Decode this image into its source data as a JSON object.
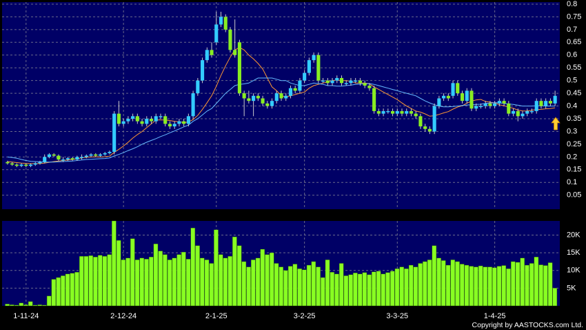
{
  "chart_data": {
    "type": "candlestick",
    "categories": [
      null,
      null,
      null,
      null,
      "1-11-24",
      null,
      null,
      null,
      null,
      null,
      null,
      null,
      null,
      null,
      null,
      null,
      null,
      null,
      null,
      null,
      null,
      null,
      null,
      null,
      null,
      "2-12-24",
      null,
      null,
      null,
      null,
      null,
      null,
      null,
      null,
      null,
      null,
      null,
      null,
      null,
      null,
      null,
      null,
      null,
      null,
      null,
      "2-1-25",
      null,
      null,
      null,
      null,
      null,
      null,
      null,
      null,
      null,
      null,
      null,
      null,
      null,
      null,
      null,
      null,
      null,
      null,
      "3-2-25",
      null,
      null,
      null,
      null,
      null,
      null,
      null,
      null,
      null,
      null,
      null,
      null,
      null,
      null,
      null,
      null,
      null,
      null,
      null,
      "3-3-25",
      null,
      null,
      null,
      null,
      null,
      null,
      null,
      null,
      null,
      null,
      null,
      null,
      null,
      null,
      null,
      null,
      null,
      null,
      null,
      null,
      "1-4-25",
      null,
      null,
      null,
      null,
      null,
      null,
      null,
      null,
      null,
      null,
      null,
      null,
      null
    ],
    "open": [
      0.18,
      0.175,
      0.17,
      0.165,
      0.17,
      0.165,
      0.17,
      0.175,
      0.18,
      0.2,
      0.21,
      0.205,
      0.19,
      0.19,
      0.195,
      0.19,
      0.2,
      0.2,
      0.205,
      0.21,
      0.205,
      0.21,
      0.215,
      0.22,
      0.37,
      0.33,
      0.34,
      0.35,
      0.36,
      0.34,
      0.33,
      0.35,
      0.34,
      0.36,
      0.36,
      0.33,
      0.32,
      0.33,
      0.34,
      0.33,
      0.36,
      0.45,
      0.5,
      0.58,
      0.62,
      0.65,
      0.72,
      0.75,
      0.7,
      0.62,
      0.65,
      0.45,
      0.43,
      0.42,
      0.44,
      0.43,
      0.41,
      0.4,
      0.42,
      0.45,
      0.43,
      0.44,
      0.47,
      0.46,
      0.5,
      0.53,
      0.58,
      0.6,
      0.5,
      0.5,
      0.49,
      0.5,
      0.51,
      0.49,
      0.49,
      0.5,
      0.5,
      0.49,
      0.48,
      0.47,
      0.38,
      0.37,
      0.38,
      0.38,
      0.37,
      0.38,
      0.37,
      0.38,
      0.37,
      0.36,
      0.32,
      0.31,
      0.3,
      0.4,
      0.43,
      0.44,
      0.44,
      0.49,
      0.45,
      0.42,
      0.46,
      0.39,
      0.4,
      0.4,
      0.41,
      0.4,
      0.41,
      0.42,
      0.41,
      0.37,
      0.38,
      0.36,
      0.37,
      0.38,
      0.38,
      0.42,
      0.4,
      0.42,
      0.41
    ],
    "high": [
      0.185,
      0.18,
      0.175,
      0.175,
      0.175,
      0.175,
      0.18,
      0.185,
      0.21,
      0.215,
      0.215,
      0.21,
      0.2,
      0.2,
      0.2,
      0.205,
      0.21,
      0.21,
      0.215,
      0.215,
      0.215,
      0.22,
      0.225,
      0.38,
      0.42,
      0.35,
      0.36,
      0.37,
      0.37,
      0.35,
      0.36,
      0.36,
      0.37,
      0.37,
      0.37,
      0.34,
      0.34,
      0.35,
      0.35,
      0.37,
      0.46,
      0.51,
      0.59,
      0.63,
      0.65,
      0.77,
      0.77,
      0.76,
      0.71,
      0.74,
      0.66,
      0.46,
      0.46,
      0.45,
      0.45,
      0.44,
      0.42,
      0.43,
      0.46,
      0.46,
      0.45,
      0.48,
      0.48,
      0.51,
      0.54,
      0.59,
      0.61,
      0.61,
      0.51,
      0.51,
      0.51,
      0.52,
      0.52,
      0.5,
      0.51,
      0.51,
      0.51,
      0.5,
      0.49,
      0.48,
      0.39,
      0.39,
      0.39,
      0.39,
      0.39,
      0.39,
      0.39,
      0.39,
      0.38,
      0.37,
      0.33,
      0.32,
      0.41,
      0.44,
      0.45,
      0.45,
      0.5,
      0.5,
      0.46,
      0.47,
      0.47,
      0.41,
      0.41,
      0.42,
      0.42,
      0.42,
      0.43,
      0.43,
      0.42,
      0.39,
      0.39,
      0.38,
      0.39,
      0.39,
      0.43,
      0.43,
      0.43,
      0.43,
      0.46
    ],
    "low": [
      0.17,
      0.165,
      0.16,
      0.16,
      0.16,
      0.16,
      0.165,
      0.17,
      0.175,
      0.195,
      0.2,
      0.185,
      0.18,
      0.185,
      0.185,
      0.185,
      0.19,
      0.195,
      0.2,
      0.2,
      0.2,
      0.205,
      0.21,
      0.21,
      0.32,
      0.32,
      0.33,
      0.34,
      0.33,
      0.32,
      0.32,
      0.33,
      0.33,
      0.35,
      0.32,
      0.31,
      0.31,
      0.32,
      0.32,
      0.32,
      0.35,
      0.44,
      0.49,
      0.57,
      0.59,
      0.64,
      0.71,
      0.69,
      0.61,
      0.59,
      0.44,
      0.36,
      0.41,
      0.36,
      0.42,
      0.4,
      0.39,
      0.39,
      0.41,
      0.42,
      0.42,
      0.43,
      0.45,
      0.45,
      0.49,
      0.52,
      0.57,
      0.49,
      0.49,
      0.48,
      0.48,
      0.49,
      0.48,
      0.48,
      0.48,
      0.49,
      0.48,
      0.47,
      0.46,
      0.37,
      0.36,
      0.36,
      0.37,
      0.36,
      0.36,
      0.36,
      0.36,
      0.36,
      0.35,
      0.31,
      0.3,
      0.29,
      0.29,
      0.39,
      0.42,
      0.42,
      0.43,
      0.44,
      0.41,
      0.41,
      0.38,
      0.38,
      0.39,
      0.39,
      0.39,
      0.39,
      0.4,
      0.4,
      0.36,
      0.36,
      0.34,
      0.35,
      0.36,
      0.37,
      0.37,
      0.39,
      0.39,
      0.4,
      0.4
    ],
    "close": [
      0.175,
      0.17,
      0.165,
      0.17,
      0.165,
      0.17,
      0.175,
      0.18,
      0.2,
      0.21,
      0.205,
      0.19,
      0.19,
      0.195,
      0.19,
      0.2,
      0.2,
      0.205,
      0.21,
      0.205,
      0.21,
      0.215,
      0.22,
      0.37,
      0.33,
      0.34,
      0.35,
      0.36,
      0.34,
      0.33,
      0.35,
      0.34,
      0.36,
      0.36,
      0.33,
      0.32,
      0.33,
      0.34,
      0.33,
      0.36,
      0.45,
      0.5,
      0.58,
      0.62,
      0.6,
      0.72,
      0.75,
      0.7,
      0.62,
      0.6,
      0.45,
      0.43,
      0.42,
      0.44,
      0.43,
      0.41,
      0.4,
      0.42,
      0.45,
      0.43,
      0.44,
      0.47,
      0.46,
      0.5,
      0.53,
      0.58,
      0.6,
      0.5,
      0.5,
      0.49,
      0.5,
      0.51,
      0.49,
      0.49,
      0.5,
      0.5,
      0.49,
      0.48,
      0.47,
      0.38,
      0.37,
      0.38,
      0.38,
      0.37,
      0.38,
      0.37,
      0.38,
      0.37,
      0.36,
      0.32,
      0.31,
      0.3,
      0.4,
      0.43,
      0.44,
      0.43,
      0.49,
      0.45,
      0.42,
      0.46,
      0.39,
      0.4,
      0.4,
      0.41,
      0.4,
      0.41,
      0.42,
      0.41,
      0.37,
      0.38,
      0.36,
      0.37,
      0.38,
      0.38,
      0.42,
      0.4,
      0.42,
      0.41,
      0.44
    ],
    "up_color": "#33ccff",
    "down_color": "#88ee22",
    "ma": [
      {
        "color": "#ff9933",
        "values": [
          0.182,
          0.18,
          0.178,
          0.176,
          0.175,
          0.174,
          0.174,
          0.174,
          0.176,
          0.179,
          0.182,
          0.184,
          0.186,
          0.188,
          0.19,
          0.193,
          0.196,
          0.199,
          0.2,
          0.201,
          0.2,
          0.201,
          0.203,
          0.218,
          0.23,
          0.243,
          0.258,
          0.274,
          0.288,
          0.3,
          0.315,
          0.33,
          0.345,
          0.345,
          0.345,
          0.343,
          0.34,
          0.338,
          0.335,
          0.337,
          0.347,
          0.363,
          0.387,
          0.413,
          0.44,
          0.478,
          0.52,
          0.558,
          0.592,
          0.62,
          0.63,
          0.62,
          0.6,
          0.585,
          0.567,
          0.545,
          0.51,
          0.475,
          0.46,
          0.44,
          0.436,
          0.44,
          0.445,
          0.45,
          0.455,
          0.47,
          0.48,
          0.485,
          0.49,
          0.495,
          0.5,
          0.502,
          0.5,
          0.5,
          0.497,
          0.49,
          0.49,
          0.49,
          0.487,
          0.475,
          0.465,
          0.455,
          0.445,
          0.435,
          0.425,
          0.412,
          0.4,
          0.39,
          0.38,
          0.376,
          0.369,
          0.36,
          0.362,
          0.367,
          0.373,
          0.378,
          0.388,
          0.396,
          0.401,
          0.411,
          0.419,
          0.424,
          0.426,
          0.418,
          0.415,
          0.412,
          0.405,
          0.401,
          0.396,
          0.391,
          0.384,
          0.381,
          0.38,
          0.384,
          0.386,
          0.387,
          0.389,
          0.39,
          0.393
        ]
      },
      {
        "color": "#66bbff",
        "values": [
          0.2,
          0.198,
          0.195,
          0.19,
          0.186,
          0.183,
          0.182,
          0.181,
          0.18,
          0.18,
          0.18,
          0.181,
          0.182,
          0.183,
          0.184,
          0.186,
          0.188,
          0.19,
          0.191,
          0.192,
          0.193,
          0.194,
          0.196,
          0.204,
          0.21,
          0.217,
          0.225,
          0.232,
          0.24,
          0.25,
          0.258,
          0.265,
          0.272,
          0.28,
          0.287,
          0.295,
          0.302,
          0.31,
          0.318,
          0.325,
          0.34,
          0.35,
          0.365,
          0.38,
          0.39,
          0.41,
          0.43,
          0.45,
          0.465,
          0.48,
          0.485,
          0.487,
          0.49,
          0.5,
          0.51,
          0.51,
          0.51,
          0.51,
          0.505,
          0.5,
          0.5,
          0.49,
          0.485,
          0.48,
          0.48,
          0.485,
          0.49,
          0.488,
          0.485,
          0.48,
          0.48,
          0.478,
          0.478,
          0.48,
          0.482,
          0.485,
          0.486,
          0.487,
          0.488,
          0.485,
          0.48,
          0.475,
          0.47,
          0.465,
          0.46,
          0.455,
          0.45,
          0.445,
          0.44,
          0.43,
          0.42,
          0.412,
          0.405,
          0.4,
          0.397,
          0.397,
          0.398,
          0.4,
          0.402,
          0.404,
          0.405,
          0.406,
          0.407,
          0.41,
          0.412,
          0.413,
          0.413,
          0.41,
          0.408,
          0.406,
          0.403,
          0.4,
          0.4,
          0.4,
          0.401,
          0.401,
          0.4,
          0.4,
          0.4
        ]
      }
    ],
    "ylim": [
      -0.005,
      0.808
    ],
    "yticks": [
      0.05,
      0.1,
      0.15,
      0.2,
      0.25,
      0.3,
      0.35,
      0.4,
      0.45,
      0.5,
      0.55,
      0.6,
      0.65,
      0.7,
      0.75,
      0.8
    ],
    "grid": true,
    "volume": {
      "color": "#88ff22",
      "values": [
        500,
        300,
        200,
        800,
        300,
        1200,
        200,
        300,
        200,
        2800,
        7500,
        8000,
        8500,
        9000,
        9200,
        9500,
        14000,
        14000,
        14200,
        13800,
        14300,
        14000,
        14500,
        24000,
        18500,
        13000,
        13500,
        19000,
        13000,
        13500,
        13200,
        13800,
        17500,
        15500,
        14500,
        13000,
        13500,
        14500,
        15200,
        13200,
        22000,
        17000,
        13500,
        13000,
        12000,
        21500,
        14500,
        13500,
        14000,
        19500,
        17000,
        12500,
        11000,
        13000,
        13500,
        16000,
        14500,
        15000,
        12000,
        11000,
        10000,
        11200,
        11800,
        10500,
        10200,
        11500,
        12500,
        11000,
        8000,
        13000,
        9500,
        9000,
        12000,
        8500,
        8800,
        9300,
        9000,
        9400,
        8800,
        9600,
        9800,
        9000,
        9400,
        9800,
        10500,
        11000,
        10500,
        11500,
        11000,
        12000,
        12500,
        13000,
        17000,
        13500,
        12800,
        11500,
        13000,
        12500,
        11800,
        11500,
        11200,
        11000,
        11300,
        11000,
        11000,
        10800,
        11200,
        11400,
        10500,
        12500,
        12300,
        13500,
        11500,
        12000,
        13800,
        11600,
        11400,
        12200,
        5000
      ],
      "ylim": [
        0,
        24000
      ],
      "yticks": [
        {
          "value": 5000,
          "label": "5K"
        },
        {
          "value": 10000,
          "label": "10K"
        },
        {
          "value": 15000,
          "label": "15K"
        },
        {
          "value": 20000,
          "label": "20K"
        }
      ]
    },
    "copyright": "Copyright by AASTOCKS.com Ltd."
  }
}
